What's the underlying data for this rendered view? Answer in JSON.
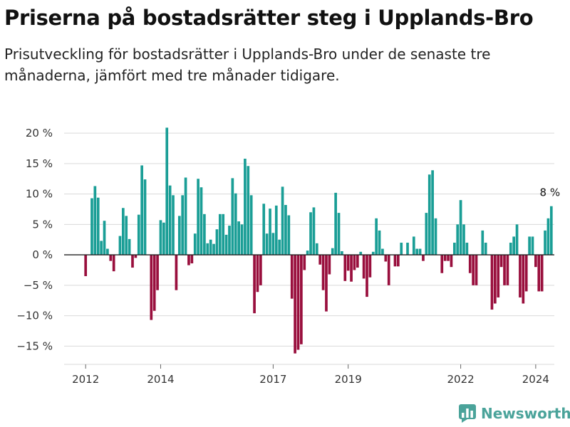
{
  "title": "Priserna på bostadsrätter steg i Upplands-Bro",
  "subtitle": "Prisutveckling för bostadsrätter i Upplands-Bro under de senaste tre månaderna, jämfört med tre månader tidigare.",
  "brand": "Newsworthy",
  "colors": {
    "positive": "#1a9e96",
    "negative": "#990f3d",
    "grid": "#d9d9d9",
    "zero_line": "#222222",
    "axis_text": "#333333",
    "brand": "#4aa39a"
  },
  "chart_data": {
    "type": "bar",
    "unit": "%",
    "ylim": [
      -18,
      22
    ],
    "yticks": [
      20,
      15,
      10,
      5,
      0,
      -5,
      -10,
      -15
    ],
    "ytick_labels": [
      "20 %",
      "15 %",
      "10 %",
      "5 %",
      "0 %",
      "−5 %",
      "−10 %",
      "−15 %"
    ],
    "xticks": [
      "2012",
      "2014",
      "2017",
      "2019",
      "2022",
      "2024"
    ],
    "xtick_positions": [
      "2012-01",
      "2014-01",
      "2017-01",
      "2019-01",
      "2022-01",
      "2024-01"
    ],
    "x_start": "2012-01",
    "x_end": "2024-04",
    "values": [
      -3.5,
      0,
      9.3,
      11.3,
      9.4,
      2.3,
      5.6,
      1,
      -1,
      -2.7,
      0,
      3.1,
      7.7,
      6.4,
      2.6,
      -2.1,
      -0.5,
      6.6,
      14.7,
      12.4,
      0,
      -10.7,
      -9.2,
      -5.8,
      5.7,
      5.3,
      20.9,
      11.4,
      9.8,
      -5.8,
      6.4,
      9.8,
      12.7,
      -1.7,
      -1.4,
      3.5,
      12.5,
      11.1,
      6.7,
      1.9,
      2.5,
      1.8,
      4.2,
      6.7,
      6.7,
      3.3,
      4.8,
      12.6,
      10.1,
      5.5,
      5.0,
      15.8,
      14.6,
      9.8,
      -9.6,
      -6.1,
      -5.0,
      8.4,
      3.5,
      7.6,
      3.6,
      8.1,
      2.5,
      11.2,
      8.2,
      6.5,
      -7.2,
      -16.2,
      -15.6,
      -14.7,
      -2.5,
      0.7,
      7.0,
      7.8,
      1.9,
      -1.6,
      -5.8,
      -9.3,
      -3.2,
      1.1,
      10.2,
      6.9,
      0.6,
      -4.3,
      -2.6,
      -4.4,
      -2.5,
      -2.1,
      0.5,
      -3.9,
      -6.9,
      -3.7,
      0.5,
      6.0,
      4.0,
      1.0,
      -1.1,
      -5.0,
      0,
      -1.9,
      -1.9,
      2.0,
      0,
      2.0,
      0,
      3.0,
      1.0,
      1.0,
      -1.0,
      6.9,
      13.2,
      13.9,
      6.0,
      0,
      -3.0,
      -1.0,
      -1.0,
      -2.0,
      2.0,
      5.0,
      9.0,
      5.0,
      2.0,
      -3.0,
      -5.0,
      -5.0,
      0,
      4.0,
      2.0,
      0,
      -9.0,
      -8.0,
      -7.0,
      -2.0,
      -5.0,
      -5.0,
      2.0,
      3.0,
      5.0,
      -7.0,
      -8.0,
      -6.0,
      3.0,
      3.0,
      -2.0,
      -6.0,
      -6.0,
      4.0,
      6.0,
      8.0
    ],
    "annotation": {
      "text": "8 %",
      "target": "last"
    }
  }
}
